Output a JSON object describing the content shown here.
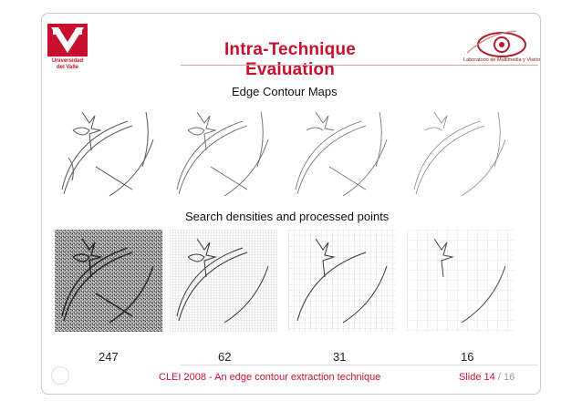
{
  "colors": {
    "accent": "#c8102e",
    "text": "#111111"
  },
  "logo": {
    "line1": "Universidad",
    "line2": "del Valle"
  },
  "slide_title": "Intra-Technique Evaluation",
  "lab_logo": {
    "icon": "eye-logo-icon",
    "text": "Laboratorio de Multimedia y Visión"
  },
  "sections": {
    "edge_maps": "Edge  Contour Maps",
    "densities": "Search densities and processed points"
  },
  "densities": [
    "247",
    "62",
    "31",
    "16"
  ],
  "footer": {
    "text": "CLEI 2008 - An edge contour extraction technique",
    "slide_label": "Slide",
    "slide_current": "14",
    "slide_total": "/ 16"
  }
}
